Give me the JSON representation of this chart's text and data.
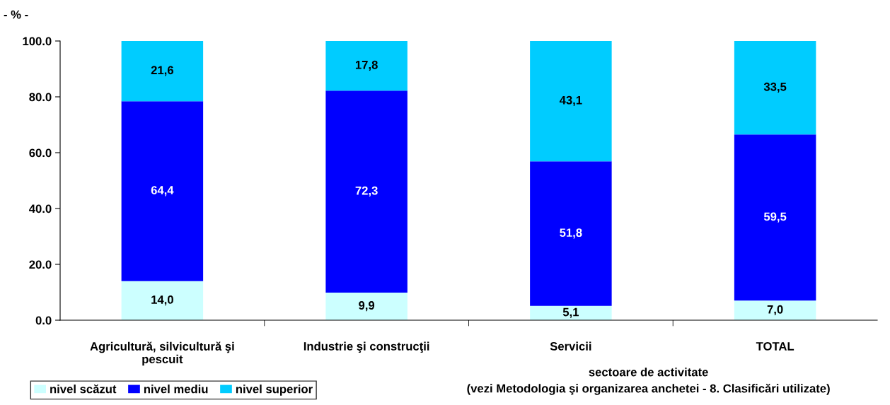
{
  "chart_data": {
    "type": "bar",
    "stacked": true,
    "ylabel": "- % -",
    "xlabel": "sectoare de activitate\n(vezi Metodologia şi organizarea anchetei - 8. Clasificări utilizate)",
    "categories": [
      "Agricultură, silvicultură şi\npescuit",
      "Industrie şi construcţii",
      "Servicii",
      "TOTAL"
    ],
    "series": [
      {
        "name": "nivel scăzut",
        "color": "#ccffff",
        "values": [
          14.0,
          9.9,
          5.1,
          7.0
        ],
        "value_labels": [
          "14,0",
          "9,9",
          "5,1",
          "7,0"
        ]
      },
      {
        "name": "nivel mediu",
        "color": "#0000ff",
        "values": [
          64.4,
          72.3,
          51.8,
          59.5
        ],
        "value_labels": [
          "64,4",
          "72,3",
          "51,8",
          "59,5"
        ]
      },
      {
        "name": "nivel superior",
        "color": "#00ccff",
        "values": [
          21.6,
          17.8,
          43.1,
          33.5
        ],
        "value_labels": [
          "21,6",
          "17,8",
          "43,1",
          "33,5"
        ]
      }
    ],
    "ylim": [
      0,
      100
    ],
    "yticks": [
      {
        "value": 0,
        "label": "0.0"
      },
      {
        "value": 20,
        "label": "20.0"
      },
      {
        "value": 40,
        "label": "40.0"
      },
      {
        "value": 60,
        "label": "60.0"
      },
      {
        "value": 80,
        "label": "80.0"
      },
      {
        "value": 100,
        "label": "100.0"
      }
    ],
    "grid": false,
    "legend": "bottom left"
  }
}
